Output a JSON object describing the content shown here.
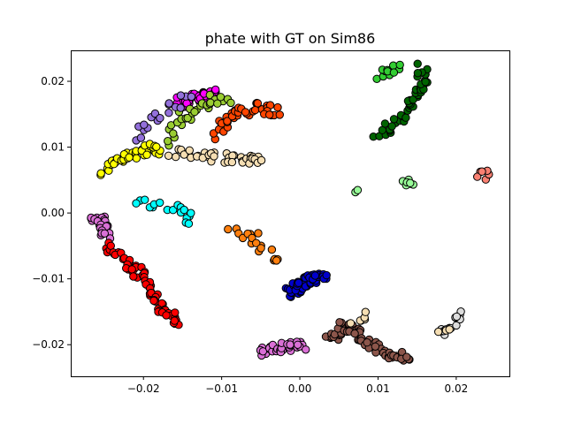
{
  "chart_data": {
    "type": "scatter",
    "title": "phate with GT on Sim86",
    "xlabel": "",
    "ylabel": "",
    "xlim": [
      -0.0293,
      0.0268
    ],
    "ylim": [
      -0.0248,
      0.0247
    ],
    "xticks": [
      -0.02,
      -0.01,
      0.0,
      0.01,
      0.02
    ],
    "xtick_labels": [
      "−0.02",
      "−0.01",
      "0.00",
      "0.01",
      "0.02"
    ],
    "yticks": [
      -0.02,
      -0.01,
      0.0,
      0.01,
      0.02
    ],
    "ytick_labels": [
      "−0.02",
      "−0.01",
      "0.00",
      "0.01",
      "0.02"
    ],
    "grid": false,
    "legend": "none",
    "series": [
      {
        "color": "#ff00ff",
        "path": [
          [
            -0.0155,
            0.0165
          ],
          [
            -0.013,
            0.0178
          ],
          [
            -0.011,
            0.018
          ]
        ],
        "n": 40
      },
      {
        "color": "#9acd32",
        "path": [
          [
            -0.017,
            0.011
          ],
          [
            -0.015,
            0.0145
          ],
          [
            -0.012,
            0.017
          ],
          [
            -0.0095,
            0.0175
          ]
        ],
        "n": 30
      },
      {
        "color": "#9370db",
        "path": [
          [
            -0.021,
            0.0115
          ],
          [
            -0.019,
            0.0135
          ],
          [
            -0.017,
            0.016
          ],
          [
            -0.014,
            0.0175
          ]
        ],
        "n": 18
      },
      {
        "color": "#ff4500",
        "path": [
          [
            -0.0105,
            0.012
          ],
          [
            -0.009,
            0.0145
          ],
          [
            -0.006,
            0.016
          ],
          [
            -0.003,
            0.0155
          ]
        ],
        "n": 45
      },
      {
        "color": "#ffff00",
        "path": [
          [
            -0.025,
            0.0065
          ],
          [
            -0.023,
            0.0085
          ],
          [
            -0.02,
            0.0095
          ],
          [
            -0.018,
            0.0098
          ]
        ],
        "n": 40
      },
      {
        "color": "#f5deb3",
        "path": [
          [
            -0.016,
            0.009
          ],
          [
            -0.012,
            0.0085
          ],
          [
            -0.008,
            0.0082
          ],
          [
            -0.0045,
            0.008
          ]
        ],
        "n": 40
      },
      {
        "color": "#00ffff",
        "path": [
          [
            -0.021,
            0.002
          ],
          [
            -0.018,
            0.0012
          ],
          [
            -0.015,
            0.0
          ],
          [
            -0.014,
            -0.001
          ]
        ],
        "n": 18
      },
      {
        "color": "#da70d6",
        "path": [
          [
            -0.0265,
            -0.0005
          ],
          [
            -0.025,
            -0.002
          ],
          [
            -0.0245,
            -0.0035
          ]
        ],
        "n": 25
      },
      {
        "color": "#ff0000",
        "path": [
          [
            -0.0245,
            -0.005
          ],
          [
            -0.0215,
            -0.008
          ],
          [
            -0.0195,
            -0.011
          ],
          [
            -0.018,
            -0.014
          ],
          [
            -0.016,
            -0.0165
          ]
        ],
        "n": 70
      },
      {
        "color": "#ff7f0e",
        "path": [
          [
            -0.009,
            -0.0025
          ],
          [
            -0.006,
            -0.0035
          ],
          [
            -0.0045,
            -0.0055
          ],
          [
            -0.003,
            -0.008
          ]
        ],
        "n": 18
      },
      {
        "color": "#0000cd",
        "path": [
          [
            -0.0015,
            -0.012
          ],
          [
            0.0,
            -0.011
          ],
          [
            0.0015,
            -0.01
          ],
          [
            0.003,
            -0.0095
          ]
        ],
        "n": 55
      },
      {
        "color": "#da70d6",
        "path": [
          [
            -0.005,
            -0.021
          ],
          [
            -0.002,
            -0.0205
          ],
          [
            0.0005,
            -0.02
          ]
        ],
        "n": 35
      },
      {
        "color": "#8c564b",
        "path": [
          [
            0.004,
            -0.019
          ],
          [
            0.006,
            -0.017
          ],
          [
            0.008,
            -0.019
          ],
          [
            0.011,
            -0.021
          ],
          [
            0.014,
            -0.022
          ]
        ],
        "n": 70
      },
      {
        "color": "#f5deb3",
        "path": [
          [
            0.007,
            -0.017
          ],
          [
            0.009,
            -0.015
          ]
        ],
        "n": 6
      },
      {
        "color": "#32cd32",
        "path": [
          [
            0.0105,
            0.021
          ],
          [
            0.0125,
            0.022
          ]
        ],
        "n": 12
      },
      {
        "color": "#006400",
        "path": [
          [
            0.01,
            0.011
          ],
          [
            0.0125,
            0.014
          ],
          [
            0.0145,
            0.017
          ],
          [
            0.0155,
            0.0195
          ],
          [
            0.0155,
            0.022
          ]
        ],
        "n": 45
      },
      {
        "color": "#98fb98",
        "path": [
          [
            0.0135,
            0.004
          ],
          [
            0.014,
            0.0045
          ]
        ],
        "n": 8
      },
      {
        "color": "#98fb98",
        "path": [
          [
            0.0065,
            0.0032
          ],
          [
            0.0067,
            0.0035
          ]
        ],
        "n": 2
      },
      {
        "color": "#fa8072",
        "path": [
          [
            0.023,
            0.0055
          ],
          [
            0.024,
            0.0058
          ]
        ],
        "n": 6
      },
      {
        "color": "#dcdcdc",
        "path": [
          [
            0.018,
            -0.019
          ],
          [
            0.0195,
            -0.017
          ],
          [
            0.02,
            -0.015
          ]
        ],
        "n": 14
      },
      {
        "color": "#f5deb3",
        "path": [
          [
            0.018,
            -0.0185
          ],
          [
            0.0185,
            -0.018
          ]
        ],
        "n": 3
      }
    ]
  }
}
